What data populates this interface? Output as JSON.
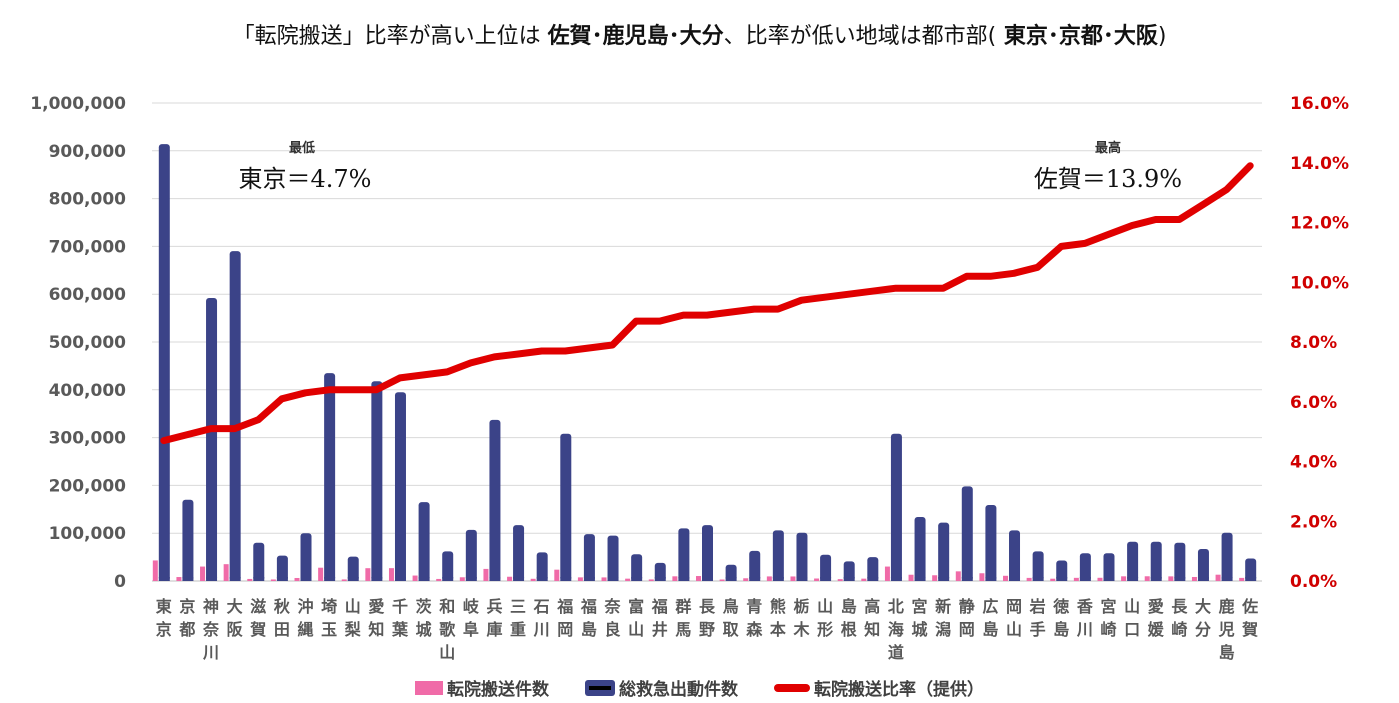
{
  "title": {
    "part1": "「転院搬送」比率が高い上位は ",
    "bold1": "佐賀･鹿児島･大分",
    "part2": "、比率が低い地域は都市部(",
    "bold2": " 東京･京都･大阪",
    "part3": ")"
  },
  "annotations": {
    "low_label": "最低",
    "low_text": "東京＝4.7%",
    "high_label": "最高",
    "high_text": "佐賀＝13.9%"
  },
  "legend": {
    "transfer": "転院搬送件数",
    "total": "総救急出動件数",
    "ratio": "転院搬送比率（提供）"
  },
  "colors": {
    "transfer": "#f06ba8",
    "total": "#3b4388",
    "ratio": "#e00000",
    "left_axis": "#595959",
    "right_axis": "#d00000",
    "grid": "#d9d9d9"
  },
  "chart_data": {
    "type": "bar",
    "title": "「転院搬送」比率が高い上位は 佐賀･鹿児島･大分、比率が低い地域は都市部( 東京･京都･大阪)",
    "xlabel": "",
    "ylabel": "",
    "ylim": [
      0,
      1000000
    ],
    "y2lim": [
      0,
      16
    ],
    "left_ticks": [
      "0",
      "100,000",
      "200,000",
      "300,000",
      "400,000",
      "500,000",
      "600,000",
      "700,000",
      "800,000",
      "900,000",
      "1,000,000"
    ],
    "right_ticks": [
      "0.0%",
      "2.0%",
      "4.0%",
      "6.0%",
      "8.0%",
      "10.0%",
      "12.0%",
      "14.0%",
      "16.0%"
    ],
    "grid": true,
    "legend_position": "bottom",
    "categories": [
      "東京",
      "京都",
      "神奈川",
      "大阪",
      "滋賀",
      "秋田",
      "沖縄",
      "埼玉",
      "山梨",
      "愛知",
      "千葉",
      "茨城",
      "和歌山",
      "岐阜",
      "兵庫",
      "三重",
      "石川",
      "福岡",
      "福島",
      "奈良",
      "富山",
      "福井",
      "群馬",
      "長野",
      "鳥取",
      "青森",
      "熊本",
      "栃木",
      "山形",
      "島根",
      "高知",
      "北海道",
      "宮城",
      "新潟",
      "静岡",
      "広島",
      "岡山",
      "岩手",
      "徳島",
      "香川",
      "宮崎",
      "山口",
      "愛媛",
      "長崎",
      "大分",
      "鹿児島",
      "佐賀"
    ],
    "series": [
      {
        "name": "転院搬送件数",
        "type": "bar",
        "axis": "left",
        "values": [
          43000,
          8300,
          30200,
          35200,
          4300,
          3200,
          6300,
          27800,
          3300,
          26800,
          26900,
          11400,
          4300,
          7800,
          25300,
          8900,
          4600,
          23700,
          7600,
          7500,
          4900,
          3300,
          9800,
          10400,
          3100,
          5700,
          9600,
          9500,
          5200,
          3900,
          4900,
          30200,
          13100,
          12000,
          20200,
          16200,
          10900,
          6500,
          4800,
          6600,
          6700,
          9800,
          9900,
          9700,
          8400,
          13200,
          6500
        ]
      },
      {
        "name": "総救急出動件数",
        "type": "bar",
        "axis": "left",
        "values": [
          914000,
          170000,
          592000,
          690000,
          80000,
          53000,
          100000,
          435000,
          51000,
          418000,
          395000,
          165000,
          62000,
          107000,
          337000,
          117000,
          60000,
          308000,
          98000,
          95000,
          56000,
          38000,
          110000,
          117000,
          34000,
          63000,
          106000,
          101000,
          55000,
          41000,
          50000,
          308000,
          134000,
          122000,
          198000,
          159000,
          106000,
          62000,
          43000,
          58000,
          58000,
          82000,
          82000,
          80000,
          67000,
          101000,
          47000
        ]
      },
      {
        "name": "転院搬送比率（提供）",
        "type": "line",
        "axis": "right",
        "unit": "%",
        "values": [
          4.7,
          4.9,
          5.1,
          5.1,
          5.4,
          6.1,
          6.3,
          6.4,
          6.4,
          6.4,
          6.8,
          6.9,
          7.0,
          7.3,
          7.5,
          7.6,
          7.7,
          7.7,
          7.8,
          7.9,
          8.7,
          8.7,
          8.9,
          8.9,
          9.0,
          9.1,
          9.1,
          9.4,
          9.5,
          9.6,
          9.7,
          9.8,
          9.8,
          9.8,
          10.2,
          10.2,
          10.3,
          10.5,
          11.2,
          11.3,
          11.6,
          11.9,
          12.1,
          12.1,
          12.6,
          13.1,
          13.9
        ]
      }
    ]
  }
}
